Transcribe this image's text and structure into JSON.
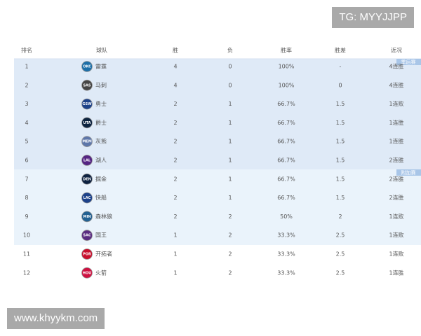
{
  "watermark_top": "TG: MYYJJPP",
  "watermark_bottom": "www.khyykm.com",
  "table": {
    "headers": [
      "排名",
      "球队",
      "胜",
      "负",
      "胜率",
      "胜差",
      "近况"
    ],
    "badges": [
      "季后赛",
      "附加赛"
    ],
    "rows": [
      [
        "1",
        "OKC",
        "雷霆",
        "4",
        "0",
        "100%",
        "-",
        "4连胜"
      ],
      [
        "2",
        "SAS",
        "马刺",
        "4",
        "0",
        "100%",
        "0",
        "4连胜"
      ],
      [
        "3",
        "GSW",
        "勇士",
        "2",
        "1",
        "66.7%",
        "1.5",
        "1连败"
      ],
      [
        "4",
        "UTA",
        "爵士",
        "2",
        "1",
        "66.7%",
        "1.5",
        "1连胜"
      ],
      [
        "5",
        "MEM",
        "灰熊",
        "2",
        "1",
        "66.7%",
        "1.5",
        "1连胜"
      ],
      [
        "6",
        "LAL",
        "湖人",
        "2",
        "1",
        "66.7%",
        "1.5",
        "2连胜"
      ],
      [
        "7",
        "DEN",
        "掘金",
        "2",
        "1",
        "66.7%",
        "1.5",
        "2连胜"
      ],
      [
        "8",
        "LAC",
        "快船",
        "2",
        "1",
        "66.7%",
        "1.5",
        "2连胜"
      ],
      [
        "9",
        "MIN",
        "森林狼",
        "2",
        "2",
        "50%",
        "2",
        "1连败"
      ],
      [
        "10",
        "SAC",
        "国王",
        "1",
        "2",
        "33.3%",
        "2.5",
        "1连败"
      ],
      [
        "11",
        "POR",
        "开拓者",
        "1",
        "2",
        "33.3%",
        "2.5",
        "1连败"
      ],
      [
        "12",
        "HOU",
        "火箭",
        "1",
        "2",
        "33.3%",
        "2.5",
        "1连胜"
      ]
    ]
  }
}
